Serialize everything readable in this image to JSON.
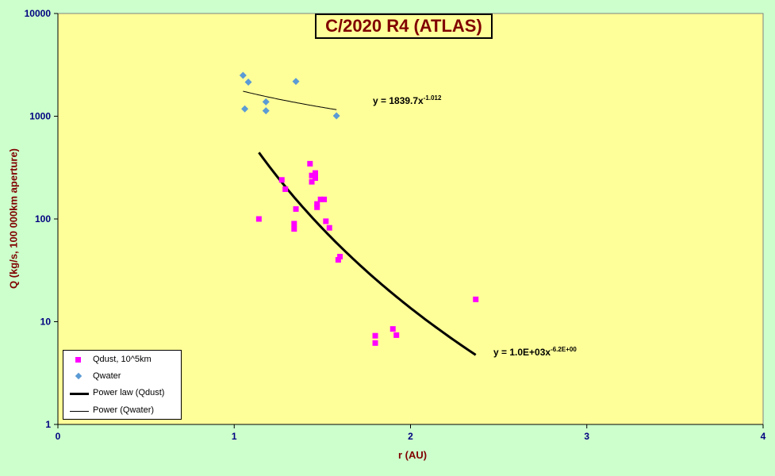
{
  "chart_data": {
    "type": "scatter",
    "title": "C/2020 R4 (ATLAS)",
    "xlabel": "r (AU)",
    "ylabel": "Q (kg/s, 100 000km aperture)",
    "x_ticks": [
      "0",
      "1",
      "2",
      "3",
      "4"
    ],
    "y_ticks": [
      "1",
      "10",
      "100",
      "1000",
      "10000"
    ],
    "xlim": [
      0,
      4
    ],
    "ylim": [
      1,
      10000
    ],
    "y_scale": "log",
    "grid": false,
    "legend_position": "bottom-left",
    "series": [
      {
        "name": "Qdust, 10^5km",
        "marker": "square",
        "color": "#ff00ff",
        "points": [
          [
            1.14,
            100
          ],
          [
            1.27,
            240
          ],
          [
            1.29,
            195
          ],
          [
            1.34,
            80
          ],
          [
            1.34,
            90
          ],
          [
            1.35,
            125
          ],
          [
            1.43,
            345
          ],
          [
            1.44,
            230
          ],
          [
            1.44,
            265
          ],
          [
            1.46,
            280
          ],
          [
            1.46,
            250
          ],
          [
            1.47,
            130
          ],
          [
            1.47,
            140
          ],
          [
            1.49,
            155
          ],
          [
            1.51,
            155
          ],
          [
            1.52,
            95
          ],
          [
            1.54,
            82
          ],
          [
            1.59,
            40
          ],
          [
            1.6,
            43
          ],
          [
            1.8,
            7.3
          ],
          [
            1.8,
            6.2
          ],
          [
            1.9,
            8.5
          ],
          [
            1.92,
            7.4
          ],
          [
            2.37,
            16.5
          ]
        ]
      },
      {
        "name": "Qwater",
        "marker": "diamond",
        "color": "#5b9bd5",
        "points": [
          [
            1.05,
            2500
          ],
          [
            1.06,
            1180
          ],
          [
            1.08,
            2150
          ],
          [
            1.18,
            1130
          ],
          [
            1.18,
            1380
          ],
          [
            1.35,
            2180
          ],
          [
            1.58,
            1010
          ]
        ]
      },
      {
        "name": "Power law (Qdust)",
        "type": "line",
        "color": "#000000",
        "coefficient": 1000,
        "exponent": -6.2,
        "x_range": [
          1.14,
          2.37
        ]
      },
      {
        "name": "Power (Qwater)",
        "type": "line",
        "color": "#000000",
        "coefficient": 1839.7,
        "exponent": -1.012,
        "x_range": [
          1.05,
          1.58
        ]
      }
    ],
    "annotations": [
      {
        "base": "y = 1839.7x",
        "exp": "-1.012"
      },
      {
        "base": "y = 1.0E+03x",
        "exp": "-6.2E+00"
      }
    ]
  },
  "colors": {
    "page_background": "#ccffcc",
    "plot_background": "#ffff99",
    "title_color": "#800000",
    "axis_label_color": "#800000",
    "tick_color": "#000080"
  }
}
